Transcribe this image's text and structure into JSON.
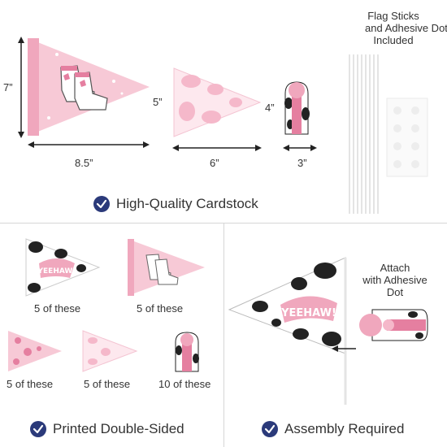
{
  "top": {
    "sticks_label_line1": "Flag Sticks",
    "sticks_label_line2": "and Adhesive Dots",
    "sticks_label_line3": "Included",
    "dim_large_h": "7”",
    "dim_large_w": "8.5”",
    "dim_medium_h": "5”",
    "dim_medium_w": "6”",
    "dim_small_h": "4”",
    "dim_small_w": "3”",
    "feature": "High-Quality Cardstock"
  },
  "left": {
    "count_1": "5 of these",
    "count_2": "5 of these",
    "count_3": "5 of these",
    "count_4": "5 of these",
    "count_5": "10 of these",
    "feature": "Printed Double-Sided"
  },
  "right": {
    "attach_line1": "Attach",
    "attach_line2": "with Adhesive",
    "attach_line3": "Dot",
    "feature": "Assembly Required"
  },
  "art": {
    "banner_text": "YEEHAW!"
  },
  "colors": {
    "pink_light": "#f7c9d6",
    "pink_mid": "#f0a7bd",
    "pink_dark": "#e57fa0",
    "check_navy": "#2b3a7a",
    "cow_black": "#222222"
  }
}
